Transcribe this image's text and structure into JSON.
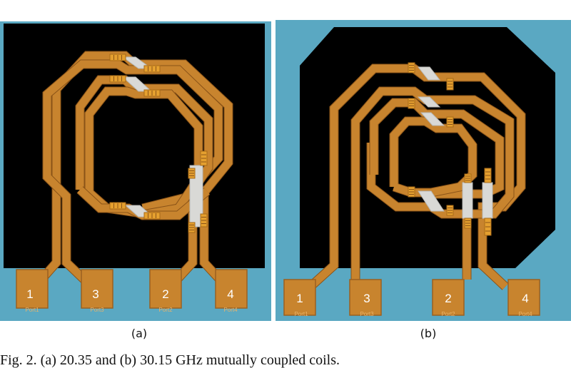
{
  "colors": {
    "substrate": "#5aa8c2",
    "die": "#000000",
    "metal": "#c8842e",
    "bridge": "#d9d9d6"
  },
  "panels": [
    {
      "label": "(a)",
      "ports": [
        {
          "number": "1",
          "tag": "Port1"
        },
        {
          "number": "3",
          "tag": "Port3"
        },
        {
          "number": "2",
          "tag": "Port2"
        },
        {
          "number": "4",
          "tag": "Port4"
        }
      ]
    },
    {
      "label": "(b)",
      "ports": [
        {
          "number": "1",
          "tag": "Port1"
        },
        {
          "number": "3",
          "tag": "Port3"
        },
        {
          "number": "2",
          "tag": "Port2"
        },
        {
          "number": "4",
          "tag": "Port4"
        }
      ]
    }
  ],
  "caption": "Fig. 2. (a) 20.35 and (b) 30.15 GHz mutually coupled coils."
}
